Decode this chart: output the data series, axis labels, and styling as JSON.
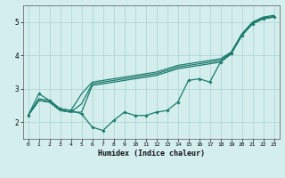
{
  "title": "",
  "xlabel": "Humidex (Indice chaleur)",
  "bg_color": "#d4eeee",
  "line_color": "#1a7a6a",
  "grid_color": "#aad0d0",
  "xlim": [
    -0.5,
    23.5
  ],
  "ylim": [
    1.5,
    5.5
  ],
  "yticks": [
    2,
    3,
    4,
    5
  ],
  "xticks": [
    0,
    1,
    2,
    3,
    4,
    5,
    6,
    7,
    8,
    9,
    10,
    11,
    12,
    13,
    14,
    15,
    16,
    17,
    18,
    19,
    20,
    21,
    22,
    23
  ],
  "s1": [
    2.2,
    2.85,
    2.65,
    2.4,
    2.35,
    2.25,
    1.85,
    1.75,
    2.05,
    2.3,
    2.2,
    2.2,
    2.3,
    2.35,
    2.6,
    3.25,
    3.3,
    3.2,
    3.8,
    4.05,
    4.6,
    4.95,
    5.1,
    5.15
  ],
  "s2": [
    2.2,
    2.65,
    2.6,
    2.35,
    2.3,
    2.3,
    3.1,
    3.15,
    3.2,
    3.25,
    3.3,
    3.35,
    3.4,
    3.5,
    3.6,
    3.65,
    3.7,
    3.75,
    3.8,
    4.05,
    4.6,
    4.95,
    5.1,
    5.15
  ],
  "s3": [
    2.2,
    2.65,
    2.6,
    2.35,
    2.3,
    2.55,
    3.15,
    3.2,
    3.25,
    3.3,
    3.35,
    3.4,
    3.45,
    3.55,
    3.65,
    3.7,
    3.75,
    3.8,
    3.85,
    4.08,
    4.62,
    4.97,
    5.12,
    5.17
  ],
  "s4": [
    2.2,
    2.7,
    2.65,
    2.4,
    2.35,
    2.85,
    3.2,
    3.25,
    3.3,
    3.35,
    3.4,
    3.45,
    3.5,
    3.6,
    3.7,
    3.75,
    3.8,
    3.85,
    3.9,
    4.1,
    4.65,
    5.0,
    5.15,
    5.2
  ]
}
